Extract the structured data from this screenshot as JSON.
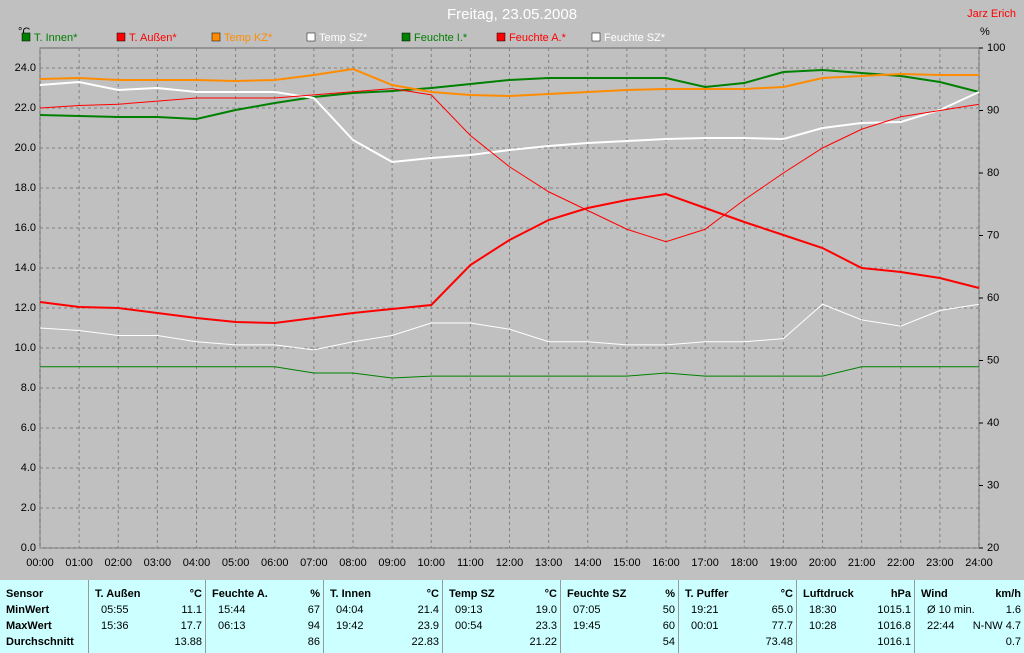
{
  "chart_data": {
    "type": "line",
    "title": "Freitag, 23.05.2008",
    "author": "Jarz Erich",
    "ylabel": "°C",
    "y2label": "%",
    "x": [
      0,
      1,
      2,
      3,
      4,
      5,
      6,
      7,
      8,
      9,
      10,
      11,
      12,
      13,
      14,
      15,
      16,
      17,
      18,
      19,
      20,
      21,
      22,
      23,
      24
    ],
    "xlim": [
      0,
      24
    ],
    "xticks": [
      {
        "value": 0,
        "label": "00:00"
      },
      {
        "value": 1,
        "label": "01:00"
      },
      {
        "value": 2,
        "label": "02:00"
      },
      {
        "value": 3,
        "label": "03:00"
      },
      {
        "value": 4,
        "label": "04:00"
      },
      {
        "value": 5,
        "label": "05:00"
      },
      {
        "value": 6,
        "label": "06:00"
      },
      {
        "value": 7,
        "label": "07:00"
      },
      {
        "value": 8,
        "label": "08:00"
      },
      {
        "value": 9,
        "label": "09:00"
      },
      {
        "value": 10,
        "label": "10:00"
      },
      {
        "value": 11,
        "label": "11:00"
      },
      {
        "value": 12,
        "label": "12:00"
      },
      {
        "value": 13,
        "label": "13:00"
      },
      {
        "value": 14,
        "label": "14:00"
      },
      {
        "value": 15,
        "label": "15:00"
      },
      {
        "value": 16,
        "label": "16:00"
      },
      {
        "value": 17,
        "label": "17:00"
      },
      {
        "value": 18,
        "label": "18:00"
      },
      {
        "value": 19,
        "label": "19:00"
      },
      {
        "value": 20,
        "label": "20:00"
      },
      {
        "value": 21,
        "label": "21:00"
      },
      {
        "value": 22,
        "label": "22:00"
      },
      {
        "value": 23,
        "label": "23:00"
      },
      {
        "value": 24,
        "label": "24:00"
      }
    ],
    "ylim": [
      0,
      25
    ],
    "yticks": [
      {
        "value": 0,
        "label": "0.0"
      },
      {
        "value": 2,
        "label": "2.0"
      },
      {
        "value": 4,
        "label": "4.0"
      },
      {
        "value": 6,
        "label": "6.0"
      },
      {
        "value": 8,
        "label": "8.0"
      },
      {
        "value": 10,
        "label": "10.0"
      },
      {
        "value": 12,
        "label": "12.0"
      },
      {
        "value": 14,
        "label": "14.0"
      },
      {
        "value": 16,
        "label": "16.0"
      },
      {
        "value": 18,
        "label": "18.0"
      },
      {
        "value": 20,
        "label": "20.0"
      },
      {
        "value": 22,
        "label": "22.0"
      },
      {
        "value": 24,
        "label": "24.0"
      }
    ],
    "y2lim": [
      20,
      100
    ],
    "y2ticks": [
      20,
      30,
      40,
      50,
      60,
      70,
      80,
      90,
      100
    ],
    "grid": true,
    "series": [
      {
        "name": "T. Innen*",
        "color": "#008000",
        "width": 2,
        "values": [
          21.65,
          21.6,
          21.55,
          21.55,
          21.45,
          21.9,
          22.25,
          22.55,
          22.75,
          22.85,
          23.0,
          23.2,
          23.4,
          23.5,
          23.5,
          23.5,
          23.5,
          23.05,
          23.25,
          23.8,
          23.9,
          23.75,
          23.6,
          23.3,
          22.8
        ]
      },
      {
        "name": "T. Außen*",
        "color": "#ff0000",
        "width": 2,
        "values": [
          12.3,
          12.05,
          12.0,
          11.75,
          11.5,
          11.3,
          11.25,
          11.5,
          11.75,
          11.95,
          12.15,
          14.15,
          15.4,
          16.4,
          17.0,
          17.4,
          17.7,
          17.0,
          16.3,
          15.65,
          15.0,
          14.0,
          13.8,
          13.5,
          13.0
        ]
      },
      {
        "name": "Temp KZ*",
        "color": "#ff8c00",
        "width": 2,
        "values": [
          23.45,
          23.5,
          23.4,
          23.4,
          23.4,
          23.35,
          23.4,
          23.65,
          23.95,
          23.15,
          22.8,
          22.65,
          22.6,
          22.7,
          22.8,
          22.9,
          22.95,
          22.95,
          22.95,
          23.05,
          23.5,
          23.6,
          23.7,
          23.65,
          23.65
        ]
      },
      {
        "name": "Temp SZ*",
        "color": "#ffffff",
        "width": 2,
        "values": [
          23.15,
          23.3,
          22.9,
          23.0,
          22.8,
          22.8,
          22.8,
          22.5,
          20.4,
          19.3,
          19.5,
          19.65,
          19.9,
          20.1,
          20.25,
          20.35,
          20.45,
          20.5,
          20.5,
          20.45,
          21.0,
          21.25,
          21.3,
          21.9,
          22.8
        ]
      },
      {
        "name": "Feuchte I.*",
        "color": "#008000",
        "width": 1,
        "axis": "y2",
        "values": [
          49,
          49,
          49,
          49,
          49,
          49,
          49,
          48,
          48,
          47.2,
          47.5,
          47.5,
          47.5,
          47.5,
          47.5,
          47.5,
          48,
          47.5,
          47.5,
          47.5,
          47.5,
          49,
          49,
          49,
          49
        ]
      },
      {
        "name": "Feuchte A.*",
        "color": "#ff0000",
        "width": 1,
        "axis": "y2",
        "values": [
          90.4,
          90.8,
          91,
          91.5,
          92,
          92,
          92,
          92.5,
          93,
          93.5,
          92.5,
          86,
          81,
          77,
          74,
          71,
          69,
          71,
          75.7,
          80,
          84,
          87,
          89,
          90,
          91
        ]
      },
      {
        "name": "Feuchte SZ*",
        "color": "#ffffff",
        "width": 1,
        "axis": "y2",
        "values": [
          55.2,
          54.8,
          54,
          54,
          53,
          52.5,
          52.5,
          51.7,
          53,
          54,
          56,
          56,
          55,
          53,
          53,
          52.5,
          52.5,
          53,
          53,
          53.5,
          59,
          56.5,
          55.5,
          58,
          59
        ]
      }
    ]
  },
  "table": {
    "row_labels": [
      "Sensor",
      "MinWert",
      "MaxWert",
      "Durchschnitt"
    ],
    "groups": [
      {
        "name": "T. Außen",
        "unit": "°C",
        "rows": [
          [
            "05:55",
            "11.1"
          ],
          [
            "15:36",
            "17.7"
          ],
          [
            "",
            "13.88"
          ]
        ]
      },
      {
        "name": "Feuchte A.",
        "unit": "%",
        "rows": [
          [
            "15:44",
            "67"
          ],
          [
            "06:13",
            "94"
          ],
          [
            "",
            "86"
          ]
        ]
      },
      {
        "name": "T. Innen",
        "unit": "°C",
        "rows": [
          [
            "04:04",
            "21.4"
          ],
          [
            "19:42",
            "23.9"
          ],
          [
            "",
            "22.83"
          ]
        ]
      },
      {
        "name": "Temp SZ",
        "unit": "°C",
        "rows": [
          [
            "09:13",
            "19.0"
          ],
          [
            "00:54",
            "23.3"
          ],
          [
            "",
            "21.22"
          ]
        ]
      },
      {
        "name": "Feuchte SZ",
        "unit": "%",
        "rows": [
          [
            "07:05",
            "50"
          ],
          [
            "19:45",
            "60"
          ],
          [
            "",
            "54"
          ]
        ]
      },
      {
        "name": "T. Puffer",
        "unit": "°C",
        "rows": [
          [
            "19:21",
            "65.0"
          ],
          [
            "00:01",
            "77.7"
          ],
          [
            "",
            "73.48"
          ]
        ]
      },
      {
        "name": "Luftdruck",
        "unit": "hPa",
        "rows": [
          [
            "18:30",
            "1015.1"
          ],
          [
            "10:28",
            "1016.8"
          ],
          [
            "",
            "1016.1"
          ]
        ]
      },
      {
        "name": "Wind",
        "unit": "km/h",
        "rows": [
          [
            "Ø 10 min.",
            "1.6"
          ],
          [
            "22:44",
            "N-NW 4.7"
          ],
          [
            "",
            "0.7"
          ]
        ]
      }
    ]
  }
}
